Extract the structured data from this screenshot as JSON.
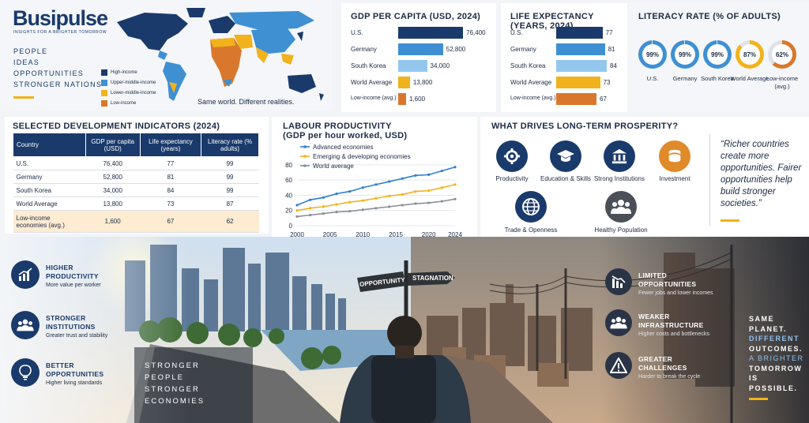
{
  "brand": {
    "logo": "Busipulse",
    "tagline": "INSIGHTS FOR A BRIGHTER TOMORROW",
    "mantra": [
      "PEOPLE",
      "IDEAS",
      "OPPORTUNITIES",
      "STRONGER NATIONS"
    ]
  },
  "map": {
    "legend": [
      "High-income",
      "Upper-middle-income",
      "Lower-middle-income",
      "Low-income"
    ],
    "legend_colors": [
      "#1a3a6b",
      "#3f90d3",
      "#f2b21b",
      "#d9782c"
    ],
    "caption": "Same world. Different realities."
  },
  "chart_data": [
    {
      "type": "bar",
      "title": "GDP PER CAPITA (USD, 2024)",
      "categories": [
        "U.S.",
        "Germany",
        "South Korea",
        "World Average",
        "Low-income (avg.)"
      ],
      "values": [
        76400,
        52800,
        34000,
        13800,
        1600
      ],
      "value_labels": [
        "76,400",
        "52,800",
        "34,000",
        "13,800",
        "1,600"
      ],
      "colors": [
        "#1a3a6b",
        "#3f90d3",
        "#94c7ee",
        "#f2b21b",
        "#d9782c"
      ],
      "xlim": [
        0,
        80000
      ]
    },
    {
      "type": "bar",
      "title": "LIFE EXPECTANCY (YEARS, 2024)",
      "categories": [
        "U.S.",
        "Germany",
        "South Korea",
        "World Average",
        "Low-income (avg.)"
      ],
      "values": [
        77,
        81,
        84,
        73,
        67
      ],
      "value_labels": [
        "77",
        "81",
        "84",
        "73",
        "67"
      ],
      "colors": [
        "#1a3a6b",
        "#3f90d3",
        "#94c7ee",
        "#f2b21b",
        "#d9782c"
      ],
      "xlim": [
        0,
        84
      ]
    },
    {
      "type": "pie",
      "title": "LITERACY RATE (% OF ADULTS)",
      "categories": [
        "U.S.",
        "Germany",
        "South Korea",
        "World Average",
        "Low-income (avg.)"
      ],
      "values": [
        99,
        99,
        99,
        87,
        62
      ],
      "value_labels": [
        "99%",
        "99%",
        "99%",
        "87%",
        "62%"
      ],
      "colors": [
        "#3f90d3",
        "#3f90d3",
        "#3f90d3",
        "#f2b21b",
        "#d9782c"
      ]
    },
    {
      "type": "line",
      "title": "LABOUR PRODUCTIVITY",
      "subtitle": "(GDP per hour worked, USD)",
      "x": [
        2000,
        2002,
        2004,
        2006,
        2008,
        2010,
        2012,
        2014,
        2016,
        2018,
        2020,
        2022,
        2024
      ],
      "x_ticks": [
        2000,
        2005,
        2010,
        2015,
        2020,
        2024
      ],
      "y_ticks": [
        0,
        20,
        40,
        60,
        80
      ],
      "ylim": [
        0,
        85
      ],
      "series": [
        {
          "name": "Advanced economies",
          "color": "#2f7fd0",
          "values": [
            27,
            34,
            37,
            42,
            45,
            50,
            54,
            58,
            62,
            66,
            67,
            72,
            77
          ]
        },
        {
          "name": "Emerging & developing economies",
          "color": "#f2b21b",
          "values": [
            20,
            23,
            25,
            28,
            31,
            33,
            36,
            39,
            41,
            45,
            46,
            50,
            54
          ]
        },
        {
          "name": "World average",
          "color": "#8a8f98",
          "values": [
            12,
            14,
            16,
            18,
            19,
            21,
            23,
            25,
            27,
            29,
            30,
            32,
            35
          ]
        }
      ],
      "legend": "top-left"
    },
    {
      "type": "table",
      "title": "SELECTED DEVELOPMENT INDICATORS (2024)",
      "columns": [
        "Country",
        "GDP per capita (USD)",
        "Life expectancy (years)",
        "Literacy rate (% adults)"
      ],
      "rows": [
        [
          "U.S.",
          "76,400",
          "77",
          "99"
        ],
        [
          "Germany",
          "52,800",
          "81",
          "99"
        ],
        [
          "South Korea",
          "34,000",
          "84",
          "99"
        ],
        [
          "World Average",
          "13,800",
          "73",
          "87"
        ],
        [
          "Low-income economies (avg.)",
          "1,600",
          "67",
          "62"
        ]
      ]
    }
  ],
  "drivers": {
    "title": "WHAT DRIVES LONG-TERM PROSPERITY?",
    "items": [
      {
        "label": "Productivity",
        "icon": "gear-icon",
        "color": "#1a3a6b"
      },
      {
        "label": "Education & Skills",
        "icon": "graduation-cap-icon",
        "color": "#1a3a6b"
      },
      {
        "label": "Strong Institutions",
        "icon": "institution-icon",
        "color": "#1a3a6b"
      },
      {
        "label": "Investment",
        "icon": "coins-icon",
        "color": "#e08a2a"
      },
      {
        "label": "Trade & Openness",
        "icon": "globe-icon",
        "color": "#1a3a6b"
      },
      {
        "label": "Healthy Population",
        "icon": "people-icon",
        "color": "#4a4f58"
      }
    ],
    "quote": "“Richer countries create more opportunities. Fairer opportunities help build stronger societies.”"
  },
  "scene": {
    "left_benefits": [
      {
        "title": "HIGHER PRODUCTIVITY",
        "sub": "More value per worker",
        "icon": "growth-chart-icon"
      },
      {
        "title": "STRONGER INSTITUTIONS",
        "sub": "Greater trust and stability",
        "icon": "people-icon"
      },
      {
        "title": "BETTER OPPORTUNITIES",
        "sub": "Higher living standards",
        "icon": "lightbulb-icon"
      }
    ],
    "left_slogan": [
      "STRONGER",
      "PEOPLE",
      "STRONGER",
      "ECONOMIES"
    ],
    "signs": [
      "OPPORTUNITY",
      "STAGNATION"
    ],
    "right_challenges": [
      {
        "title": "LIMITED OPPORTUNITIES",
        "sub": "Fewer jobs and lower incomes",
        "icon": "declining-chart-icon"
      },
      {
        "title": "WEAKER INFRASTRUCTURE",
        "sub": "Higher costs and bottlenecks",
        "icon": "people-icon"
      },
      {
        "title": "GREATER CHALLENGES",
        "sub": "Harder to break the cycle",
        "icon": "warning-icon"
      }
    ],
    "right_slogan": [
      "SAME",
      "PLANET.",
      "DIFFERENT",
      "OUTCOMES.",
      "A BRIGHTER",
      "TOMORROW",
      "IS POSSIBLE."
    ]
  }
}
